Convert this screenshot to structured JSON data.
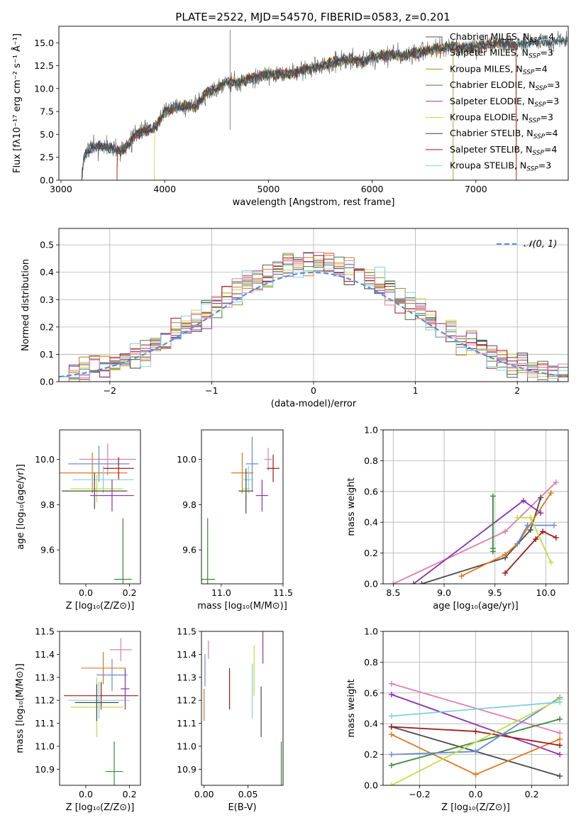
{
  "title": "PLATE=2522, MJD=54570, FIBERID=0583, z=0.201",
  "colors": {
    "series": [
      "#555555",
      "#d47a1f",
      "#b08a2a",
      "#3f7f3f",
      "#8f33b0",
      "#d4d440",
      "#404040",
      "#b01010",
      "#80d0e0"
    ],
    "normal": "#5b8bd9",
    "extra": [
      "#6a8ad8",
      "#e07fb0",
      "#c0e040",
      "#e07820",
      "#4a4a4a",
      "#a01818",
      "#3a8a3a"
    ]
  },
  "chart_data": [
    {
      "id": "spectrum",
      "type": "line",
      "xlabel": "wavelength [Angstrom, rest frame]",
      "ylabel": "Flux [fλ10⁻¹⁷ erg cm⁻² s⁻¹ Å⁻¹]",
      "xlim": [
        2980,
        7890
      ],
      "ylim": [
        0,
        16.8
      ],
      "xticks": [
        3000,
        4000,
        5000,
        6000,
        7000
      ],
      "yticks": [
        0.0,
        2.5,
        5.0,
        7.5,
        10.0,
        12.5,
        15.0
      ],
      "ytick_labels": [
        "0.0",
        "2.5",
        "5.0",
        "7.5",
        "10.0",
        "12.5",
        "15.0"
      ],
      "envelope": {
        "x": [
          3200,
          3220,
          3300,
          3400,
          3500,
          3600,
          3700,
          3800,
          3900,
          4000,
          4100,
          4200,
          4300,
          4400,
          4500,
          4600,
          4700,
          4800,
          4900,
          5000,
          5100,
          5200,
          5300,
          5400,
          5500,
          5600,
          5700,
          5800,
          5900,
          6000,
          6100,
          6200,
          6300,
          6400,
          6500,
          6600,
          6700,
          6800,
          6900,
          7000,
          7100,
          7200,
          7300,
          7400,
          7500,
          7600,
          7700,
          7800,
          7880
        ],
        "y": [
          0,
          2.5,
          3.6,
          3.7,
          3.4,
          3.2,
          4.7,
          5.5,
          5.6,
          7.4,
          8.0,
          8.1,
          8.0,
          9.6,
          10.0,
          10.8,
          10.6,
          11.0,
          11.3,
          11.5,
          11.6,
          11.6,
          11.9,
          12.2,
          12.4,
          12.8,
          13.0,
          13.2,
          12.9,
          13.4,
          13.6,
          13.7,
          13.5,
          13.9,
          14.0,
          14.3,
          14.5,
          14.6,
          14.4,
          14.6,
          14.8,
          14.9,
          15.0,
          14.8,
          14.9,
          15.1,
          15.0,
          15.2,
          15.1
        ]
      },
      "legend": [
        {
          "label": "Chabrier MILES, N",
          "sub": "SSP",
          "tail": "=4"
        },
        {
          "label": "Salpeter MILES, N",
          "sub": "SSP",
          "tail": "=3"
        },
        {
          "label": "Kroupa MILES, N",
          "sub": "SSP",
          "tail": "=4"
        },
        {
          "label": "Chabrier ELODIE, N",
          "sub": "SSP",
          "tail": "=3"
        },
        {
          "label": "Salpeter ELODIE, N",
          "sub": "SSP",
          "tail": "=3"
        },
        {
          "label": "Kroupa ELODIE, N",
          "sub": "SSP",
          "tail": "=3"
        },
        {
          "label": "Chabrier STELIB, N",
          "sub": "SSP",
          "tail": "=4"
        },
        {
          "label": "Salpeter STELIB, N",
          "sub": "SSP",
          "tail": "=4"
        },
        {
          "label": "Kroupa STELIB, N",
          "sub": "SSP",
          "tail": "=3"
        }
      ],
      "legend_position": "upper right"
    },
    {
      "id": "residuals",
      "type": "histogram",
      "xlabel": "(data-model)/error",
      "ylabel": "Normed distribution",
      "xlim": [
        -2.5,
        2.5
      ],
      "ylim": [
        0,
        0.56
      ],
      "xticks": [
        -2,
        -1,
        0,
        1,
        2
      ],
      "xtick_labels": [
        "−2",
        "−1",
        "0",
        "1",
        "2"
      ],
      "yticks": [
        0.0,
        0.1,
        0.2,
        0.3,
        0.4,
        0.5
      ],
      "ytick_labels": [
        "0.0",
        "0.1",
        "0.2",
        "0.3",
        "0.4",
        "0.5"
      ],
      "bin_width": 0.1,
      "grid": true,
      "legend": "𝒩(0, 1)",
      "legend_position": "upper right"
    },
    {
      "id": "age-vs-Z",
      "type": "errorbar",
      "xlabel": "Z [log₁₀(Z/Z⊙)]",
      "ylabel": "age [log₁₀(age/yr)]",
      "xlim": [
        -0.12,
        0.25
      ],
      "ylim": [
        9.45,
        10.13
      ],
      "xticks": [
        0.0,
        0.2
      ],
      "xtick_labels": [
        "0.0",
        "0.2"
      ],
      "yticks": [
        9.6,
        9.8,
        10.0
      ],
      "ytick_labels": [
        "9.6",
        "9.8",
        "10.0"
      ],
      "points": [
        {
          "x": 0.1,
          "y": 10.0,
          "xerr": 0.13,
          "yerr": 0.07
        },
        {
          "x": 0.06,
          "y": 9.98,
          "xerr": 0.14,
          "yerr": 0.08
        },
        {
          "x": 0.03,
          "y": 9.94,
          "xerr": 0.16,
          "yerr": 0.09
        },
        {
          "x": 0.15,
          "y": 9.96,
          "xerr": 0.07,
          "yerr": 0.05
        },
        {
          "x": 0.08,
          "y": 9.91,
          "xerr": 0.14,
          "yerr": 0.06
        },
        {
          "x": 0.05,
          "y": 9.87,
          "xerr": 0.12,
          "yerr": 0.06
        },
        {
          "x": 0.04,
          "y": 9.86,
          "xerr": 0.15,
          "yerr": 0.08
        },
        {
          "x": 0.12,
          "y": 9.84,
          "xerr": 0.1,
          "yerr": 0.07
        },
        {
          "x": 0.17,
          "y": 9.47,
          "xerr": 0.04,
          "yerr": 0.27
        }
      ]
    },
    {
      "id": "age-vs-mass",
      "type": "errorbar",
      "xlabel": "mass [log₁₀(M/M⊙)]",
      "ylabel": "",
      "xlim": [
        10.84,
        11.5
      ],
      "ylim": [
        9.45,
        10.13
      ],
      "xticks": [
        11.0,
        11.5
      ],
      "xtick_labels": [
        "11.0",
        "11.5"
      ],
      "yticks": [
        9.6,
        9.8,
        10.0
      ],
      "ytick_labels": [
        "9.6",
        "9.8",
        "10.0"
      ],
      "points": [
        {
          "x": 11.38,
          "y": 10.0,
          "xerr": 0.03,
          "yerr": 0.05
        },
        {
          "x": 11.25,
          "y": 9.98,
          "xerr": 0.05,
          "yerr": 0.12
        },
        {
          "x": 11.17,
          "y": 9.94,
          "xerr": 0.09,
          "yerr": 0.09
        },
        {
          "x": 11.42,
          "y": 9.96,
          "xerr": 0.05,
          "yerr": 0.06
        },
        {
          "x": 11.22,
          "y": 9.91,
          "xerr": 0.04,
          "yerr": 0.06
        },
        {
          "x": 11.2,
          "y": 9.87,
          "xerr": 0.03,
          "yerr": 0.06
        },
        {
          "x": 11.2,
          "y": 9.86,
          "xerr": 0.06,
          "yerr": 0.1
        },
        {
          "x": 11.33,
          "y": 9.84,
          "xerr": 0.05,
          "yerr": 0.07
        },
        {
          "x": 10.89,
          "y": 9.47,
          "xerr": 0.06,
          "yerr": 0.27
        }
      ]
    },
    {
      "id": "weight-vs-age",
      "type": "line",
      "xlabel": "age [log₁₀(age/yr)]",
      "ylabel": "mass weight",
      "xlim": [
        8.4,
        10.22
      ],
      "ylim": [
        0,
        1.0
      ],
      "xticks": [
        8.5,
        9.0,
        9.5,
        10.0
      ],
      "xtick_labels": [
        "8.5",
        "9.0",
        "9.5",
        "10.0"
      ],
      "yticks": [
        0.0,
        0.2,
        0.4,
        0.6,
        0.8,
        1.0
      ],
      "ytick_labels": [
        "0.0",
        "0.2",
        "0.4",
        "0.6",
        "0.8",
        "1.0"
      ],
      "grid": true,
      "series": [
        {
          "x": [
            8.5,
            9.6,
            10.1
          ],
          "y": [
            0.0,
            0.34,
            0.66
          ]
        },
        {
          "x": [
            8.7,
            9.78,
            9.95
          ],
          "y": [
            0.0,
            0.54,
            0.46
          ]
        },
        {
          "x": [
            8.78,
            9.6,
            9.85,
            9.95
          ],
          "y": [
            0.0,
            0.17,
            0.35,
            0.56
          ]
        },
        {
          "x": [
            9.17,
            9.6,
            9.72,
            10.05
          ],
          "y": [
            0.05,
            0.19,
            0.26,
            0.59
          ]
        },
        {
          "x": [
            9.6,
            9.9,
            9.97,
            10.1
          ],
          "y": [
            0.07,
            0.29,
            0.34,
            0.3
          ]
        },
        {
          "x": [
            9.48,
            9.48,
            9.48
          ],
          "y": [
            0.21,
            0.23,
            0.57
          ]
        },
        {
          "x": [
            9.72,
            9.82,
            10.08
          ],
          "y": [
            0.26,
            0.38,
            0.38
          ]
        },
        {
          "x": [
            9.72,
            9.85,
            10.05
          ],
          "y": [
            0.43,
            0.43,
            0.14
          ]
        }
      ]
    },
    {
      "id": "mass-vs-Z",
      "type": "errorbar",
      "xlabel": "Z [log₁₀(Z/Z⊙)]",
      "ylabel": "mass [log₁₀(M/M⊙)]",
      "xlim": [
        -0.12,
        0.25
      ],
      "ylim": [
        10.83,
        11.5
      ],
      "xticks": [
        0.0,
        0.2
      ],
      "xtick_labels": [
        "0.0",
        "0.2"
      ],
      "yticks": [
        10.9,
        11.0,
        11.1,
        11.2,
        11.3,
        11.4,
        11.5
      ],
      "ytick_labels": [
        "10.9",
        "11.0",
        "11.1",
        "11.2",
        "11.3",
        "11.4",
        "11.5"
      ],
      "points": [
        {
          "x": 0.16,
          "y": 11.42,
          "xerr": 0.05,
          "yerr": 0.05
        },
        {
          "x": 0.12,
          "y": 11.31,
          "xerr": 0.07,
          "yerr": 0.07
        },
        {
          "x": 0.08,
          "y": 11.34,
          "xerr": 0.1,
          "yerr": 0.07
        },
        {
          "x": 0.07,
          "y": 11.22,
          "xerr": 0.17,
          "yerr": 0.06
        },
        {
          "x": 0.06,
          "y": 11.2,
          "xerr": 0.14,
          "yerr": 0.08
        },
        {
          "x": 0.05,
          "y": 11.17,
          "xerr": 0.12,
          "yerr": 0.13
        },
        {
          "x": 0.05,
          "y": 11.19,
          "xerr": 0.1,
          "yerr": 0.08
        },
        {
          "x": 0.18,
          "y": 11.25,
          "xerr": 0.02,
          "yerr": 0.09
        },
        {
          "x": 0.13,
          "y": 10.89,
          "xerr": 0.04,
          "yerr": 0.13
        }
      ]
    },
    {
      "id": "mass-vs-EBV",
      "type": "errorbar",
      "xlabel": "E(B-V)",
      "ylabel": "",
      "xlim": [
        -0.003,
        0.09
      ],
      "ylim": [
        10.83,
        11.5
      ],
      "xticks": [
        0.0,
        0.05
      ],
      "xtick_labels": [
        "0.00",
        "0.05"
      ],
      "yticks": [
        10.9,
        11.0,
        11.1,
        11.2,
        11.3,
        11.4,
        11.5
      ],
      "ytick_labels": [
        "10.9",
        "11.0",
        "11.1",
        "11.2",
        "11.3",
        "11.4",
        "11.5"
      ],
      "points": [
        {
          "x": 0.005,
          "y": 11.42,
          "xerr": 0.0,
          "yerr": 0.04
        },
        {
          "x": 0.001,
          "y": 11.33,
          "xerr": 0.0,
          "yerr": 0.07
        },
        {
          "x": 0.0,
          "y": 11.18,
          "xerr": 0.0,
          "yerr": 0.07
        },
        {
          "x": 0.029,
          "y": 11.25,
          "xerr": 0.0,
          "yerr": 0.09
        },
        {
          "x": 0.055,
          "y": 11.24,
          "xerr": 0.0,
          "yerr": 0.12
        },
        {
          "x": 0.057,
          "y": 11.33,
          "xerr": 0.0,
          "yerr": 0.11
        },
        {
          "x": 0.065,
          "y": 11.15,
          "xerr": 0.0,
          "yerr": 0.11
        },
        {
          "x": 0.067,
          "y": 11.43,
          "xerr": 0.0,
          "yerr": 0.07
        },
        {
          "x": 0.088,
          "y": 10.9,
          "xerr": 0.0,
          "yerr": 0.12
        }
      ]
    },
    {
      "id": "weight-vs-Z",
      "type": "line",
      "xlabel": "Z [log₁₀(Z/Z⊙)]",
      "ylabel": "mass weight",
      "xlim": [
        -0.33,
        0.33
      ],
      "ylim": [
        0,
        1.0
      ],
      "xticks": [
        -0.2,
        0.0,
        0.2
      ],
      "xtick_labels": [
        "−0.2",
        "0.0",
        "0.2"
      ],
      "yticks": [
        0.0,
        0.2,
        0.4,
        0.6,
        0.8,
        1.0
      ],
      "ytick_labels": [
        "0.0",
        "0.2",
        "0.4",
        "0.6",
        "0.8",
        "1.0"
      ],
      "grid": true,
      "series": [
        {
          "x": [
            -0.3,
            0.3
          ],
          "y": [
            0.66,
            0.34
          ]
        },
        {
          "x": [
            -0.3,
            0.3
          ],
          "y": [
            0.59,
            0.2
          ]
        },
        {
          "x": [
            -0.3,
            0.3
          ],
          "y": [
            0.38,
            0.06
          ]
        },
        {
          "x": [
            -0.3,
            0.0,
            0.3
          ],
          "y": [
            0.33,
            0.07,
            0.3
          ]
        },
        {
          "x": [
            -0.3,
            0.0,
            0.3
          ],
          "y": [
            0.38,
            0.35,
            0.26
          ]
        },
        {
          "x": [
            -0.3,
            0.3
          ],
          "y": [
            0.13,
            0.43
          ]
        },
        {
          "x": [
            -0.3,
            0.0,
            0.3
          ],
          "y": [
            0.2,
            0.22,
            0.57
          ]
        },
        {
          "x": [
            -0.3,
            0.3
          ],
          "y": [
            0.0,
            0.56
          ]
        },
        {
          "x": [
            -0.3,
            0.3
          ],
          "y": [
            0.45,
            0.54
          ]
        }
      ]
    }
  ]
}
